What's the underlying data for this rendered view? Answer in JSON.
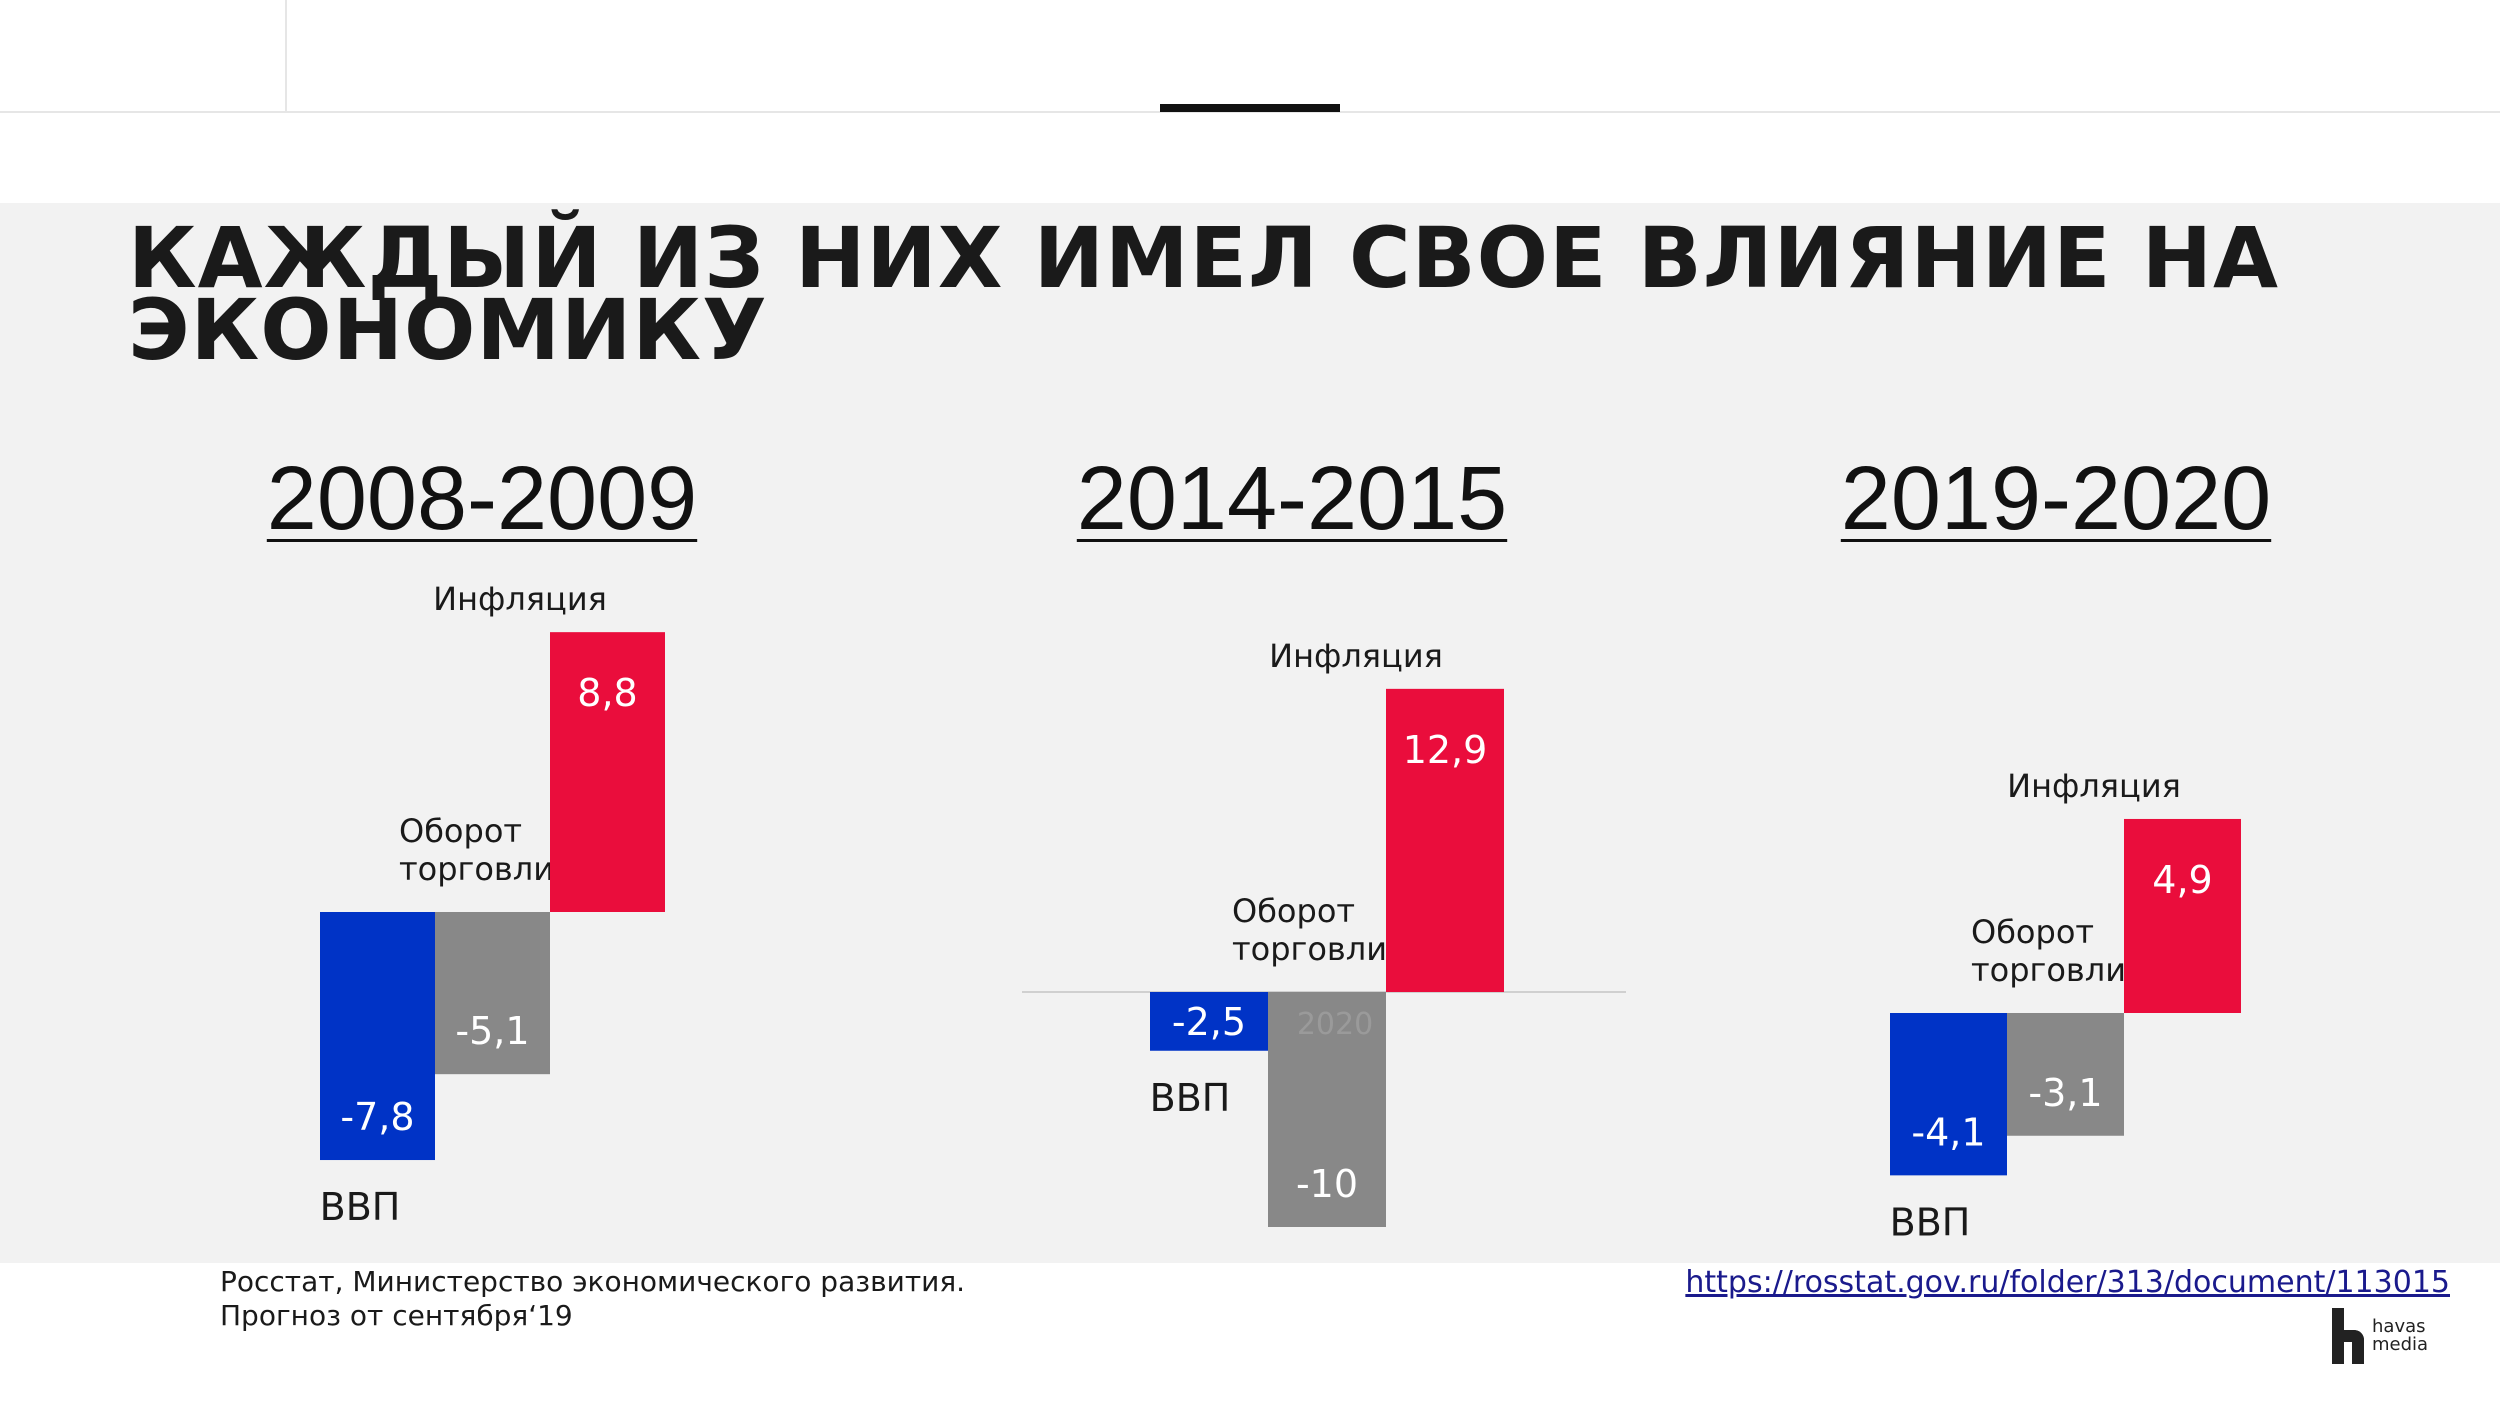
{
  "title_line1": "КАЖДЫЙ ИЗ НИХ ИМЕЛ СВОЕ ВЛИЯНИЕ НА",
  "title_line2": "ЭКОНОМИКУ",
  "colors": {
    "gdp": "#0033c6",
    "trade": "#888888",
    "inflation": "#ea0d3c",
    "band": "#f2f2f2"
  },
  "chart_data": [
    {
      "type": "bar",
      "title": "2008-2009",
      "categories": [
        "ВВП",
        "Оборот торговли",
        "Инфляция"
      ],
      "values": [
        -7.8,
        -5.1,
        8.8
      ],
      "value_labels": [
        "-7,8",
        "-5,1",
        "8,8"
      ]
    },
    {
      "type": "bar",
      "title": "2014-2015",
      "categories": [
        "ВВП",
        "Оборот торговли",
        "Инфляция"
      ],
      "values": [
        -2.5,
        -10,
        12.9
      ],
      "value_labels": [
        "-2,5",
        "-10",
        "12,9"
      ],
      "annotation": "2020"
    },
    {
      "type": "bar",
      "title": "2019-2020",
      "categories": [
        "ВВП",
        "Оборот торговли",
        "Инфляция"
      ],
      "values": [
        -4.1,
        -3.1,
        4.9
      ],
      "value_labels": [
        "-4,1",
        "-3,1",
        "4,9"
      ]
    }
  ],
  "source_line1": "Росстат, Министерство экономического развития.",
  "source_line2": "Прогноз от сентября‘19",
  "source_link": "https://rosstat.gov.ru/folder/313/document/113015",
  "logo": {
    "line1": "havas",
    "line2": "media"
  }
}
